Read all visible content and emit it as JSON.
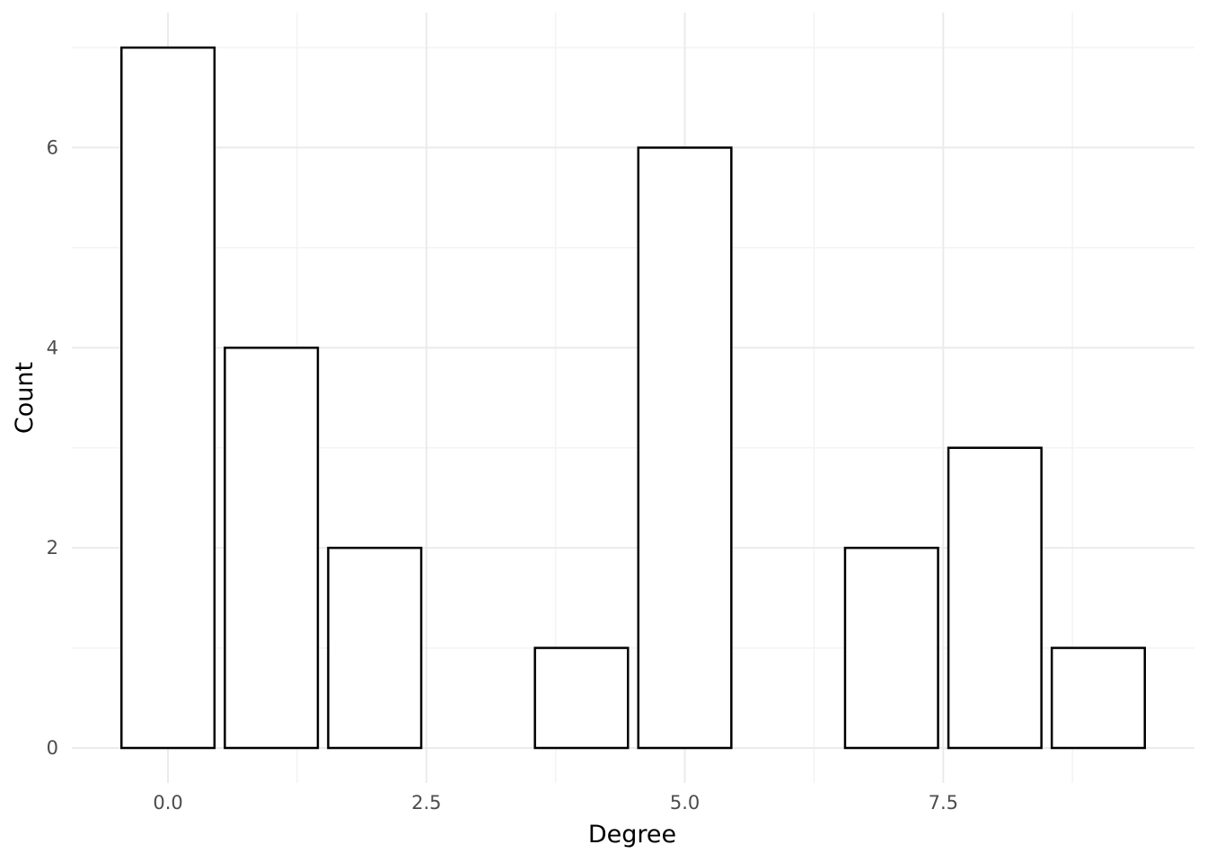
{
  "chart_data": {
    "type": "bar",
    "xlabel": "Degree",
    "ylabel": "Count",
    "x": [
      0,
      1,
      2,
      3,
      4,
      5,
      6,
      7,
      8,
      9
    ],
    "values": [
      7,
      4,
      2,
      0,
      1,
      6,
      0,
      2,
      3,
      1
    ],
    "bar_width": 0.9,
    "xlim": [
      -0.93,
      9.93
    ],
    "ylim": [
      -0.35,
      7.35
    ],
    "x_ticks": [
      0,
      2.5,
      5,
      7.5
    ],
    "x_tick_labels": [
      "0.0",
      "2.5",
      "5.0",
      "7.5"
    ],
    "y_ticks": [
      0,
      2,
      4,
      6
    ],
    "y_tick_labels": [
      "0",
      "2",
      "4",
      "6"
    ],
    "grid": true,
    "legend": "none",
    "colors": {
      "bar_fill": "#ffffff",
      "bar_stroke": "#000000",
      "grid": "#ebebeb"
    }
  }
}
